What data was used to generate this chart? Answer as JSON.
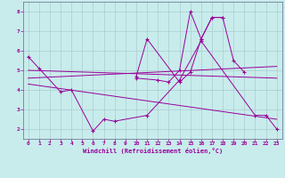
{
  "xlabel": "Windchill (Refroidissement éolien,°C)",
  "background_color": "#c8ecec",
  "line_color": "#990099",
  "grid_color": "#aacccc",
  "series1_x": [
    0,
    1,
    3,
    4,
    6,
    7,
    8,
    11,
    14,
    16,
    21,
    22,
    23
  ],
  "series1_y": [
    5.7,
    5.1,
    3.9,
    4.0,
    1.9,
    2.5,
    2.4,
    2.7,
    4.5,
    6.5,
    2.7,
    2.7,
    2.0
  ],
  "series2_x": [
    10,
    11,
    14,
    15,
    16,
    17,
    18
  ],
  "series2_y": [
    4.7,
    6.6,
    4.4,
    4.9,
    6.6,
    7.7,
    7.7
  ],
  "series3_x": [
    10,
    12,
    13,
    14,
    15,
    16,
    17,
    18,
    19,
    20
  ],
  "series3_y": [
    4.6,
    4.5,
    4.4,
    5.0,
    8.0,
    6.6,
    7.7,
    7.7,
    5.5,
    4.9
  ],
  "trend1_x": [
    0,
    23
  ],
  "trend1_y": [
    4.6,
    5.2
  ],
  "trend2_x": [
    0,
    23
  ],
  "trend2_y": [
    5.0,
    4.6
  ],
  "trend3_x": [
    0,
    23
  ],
  "trend3_y": [
    4.3,
    2.5
  ],
  "ylim": [
    1.5,
    8.5
  ],
  "xlim": [
    -0.5,
    23.5
  ],
  "yticks": [
    2,
    3,
    4,
    5,
    6,
    7,
    8
  ],
  "xticks": [
    0,
    1,
    2,
    3,
    4,
    5,
    6,
    7,
    8,
    9,
    10,
    11,
    12,
    13,
    14,
    15,
    16,
    17,
    18,
    19,
    20,
    21,
    22,
    23
  ]
}
